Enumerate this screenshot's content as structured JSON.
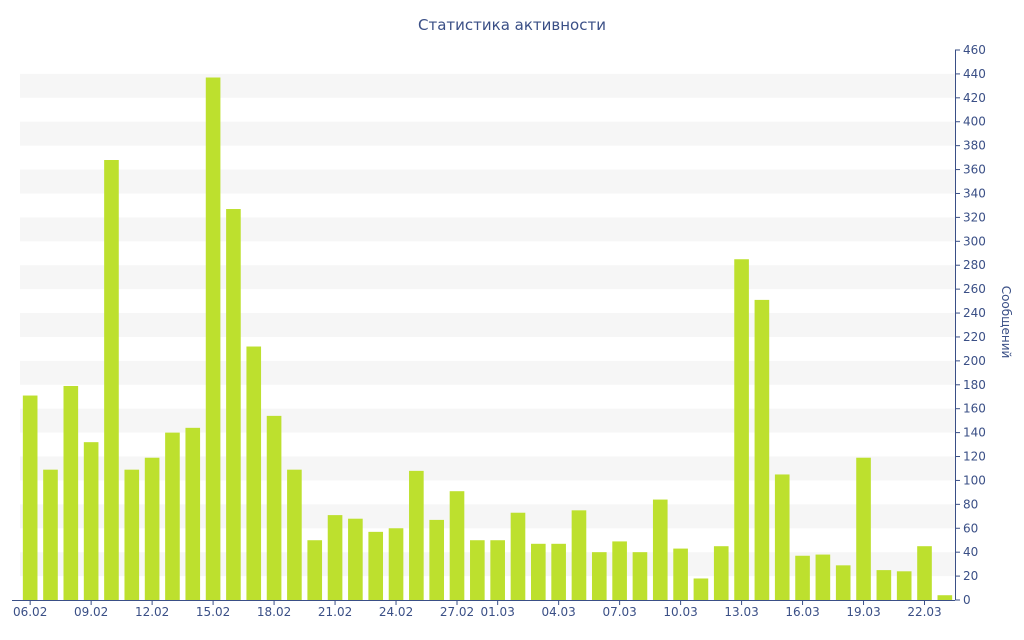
{
  "chart_data": {
    "type": "bar",
    "title": "Статистика активности",
    "xlabel": "",
    "ylabel": "Сообщений",
    "ylim": [
      0,
      460
    ],
    "y_ticks": [
      0,
      20,
      40,
      60,
      80,
      100,
      120,
      140,
      160,
      180,
      200,
      220,
      240,
      260,
      280,
      300,
      320,
      340,
      360,
      380,
      400,
      420,
      440,
      460
    ],
    "y_axis_side": "right",
    "grid": "alternating horizontal bands",
    "legend": "none",
    "bar_color": "#bde02e",
    "band_color": "#f6f6f6",
    "axis_color": "#3a4f86",
    "x_tick_labels": [
      "06.02",
      "09.02",
      "12.02",
      "15.02",
      "18.02",
      "21.02",
      "24.02",
      "27.02",
      "01.03",
      "04.03",
      "07.03",
      "10.03",
      "13.03",
      "16.03",
      "19.03",
      "22.03"
    ],
    "categories": [
      "06.02",
      "07.02",
      "08.02",
      "09.02",
      "10.02",
      "11.02",
      "12.02",
      "13.02",
      "14.02",
      "15.02",
      "16.02",
      "17.02",
      "18.02",
      "19.02",
      "20.02",
      "21.02",
      "22.02",
      "23.02",
      "24.02",
      "25.02",
      "26.02",
      "27.02",
      "28.02",
      "01.03",
      "02.03",
      "03.03",
      "04.03",
      "05.03",
      "06.03",
      "07.03",
      "08.03",
      "09.03",
      "10.03",
      "11.03",
      "12.03",
      "13.03",
      "14.03",
      "15.03",
      "16.03",
      "17.03",
      "18.03",
      "19.03",
      "20.03",
      "21.03",
      "22.03",
      "23.03"
    ],
    "values": [
      171,
      109,
      179,
      132,
      368,
      109,
      119,
      140,
      144,
      437,
      327,
      212,
      154,
      109,
      50,
      71,
      68,
      57,
      60,
      108,
      67,
      91,
      50,
      50,
      73,
      47,
      47,
      75,
      40,
      49,
      40,
      84,
      43,
      18,
      45,
      285,
      251,
      105,
      37,
      38,
      29,
      119,
      25,
      24,
      45,
      4
    ]
  }
}
